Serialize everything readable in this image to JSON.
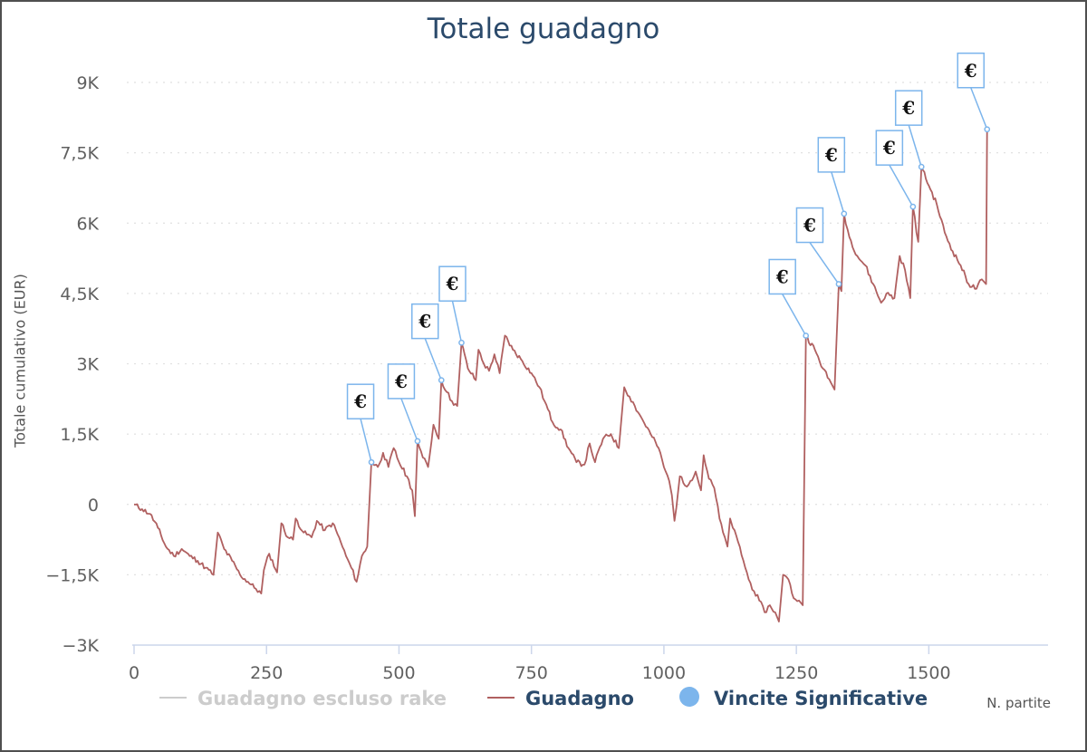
{
  "chart_data": {
    "type": "line",
    "title": "Totale guadagno",
    "xlabel": "N. partite",
    "ylabel": "Totale cumulativo (EUR)",
    "xlim": [
      0,
      1725
    ],
    "ylim": [
      -3000,
      9000
    ],
    "x_ticks": [
      0,
      250,
      500,
      750,
      1000,
      1250,
      1500
    ],
    "x_tick_labels": [
      "0",
      "250",
      "500",
      "750",
      "1000",
      "1250",
      "1500"
    ],
    "y_ticks": [
      -3000,
      -1500,
      0,
      1500,
      3000,
      4500,
      6000,
      7500,
      9000
    ],
    "y_tick_labels": [
      "−3K",
      "−1,5K",
      "0",
      "1,5K",
      "3K",
      "4,5K",
      "6K",
      "7,5K",
      "9K"
    ],
    "grid": true,
    "legend_position": "bottom",
    "legend": [
      {
        "name": "Guadagno escluso rake",
        "color": "#cccccc",
        "symbol": "line",
        "hidden": true
      },
      {
        "name": "Guadagno",
        "color": "#b06060",
        "symbol": "line"
      },
      {
        "name": "Vincite Significative",
        "color": "#7cb5ec",
        "symbol": "circle"
      }
    ],
    "series": [
      {
        "name": "Guadagno",
        "color": "#b06060",
        "points": [
          [
            0,
            0
          ],
          [
            15,
            -100
          ],
          [
            30,
            -200
          ],
          [
            45,
            -500
          ],
          [
            60,
            -900
          ],
          [
            75,
            -1100
          ],
          [
            90,
            -950
          ],
          [
            105,
            -1100
          ],
          [
            120,
            -1200
          ],
          [
            135,
            -1350
          ],
          [
            150,
            -1500
          ],
          [
            158,
            -600
          ],
          [
            170,
            -950
          ],
          [
            185,
            -1200
          ],
          [
            200,
            -1500
          ],
          [
            215,
            -1650
          ],
          [
            230,
            -1800
          ],
          [
            240,
            -1900
          ],
          [
            245,
            -1400
          ],
          [
            255,
            -1050
          ],
          [
            270,
            -1450
          ],
          [
            278,
            -400
          ],
          [
            290,
            -700
          ],
          [
            300,
            -750
          ],
          [
            305,
            -300
          ],
          [
            320,
            -600
          ],
          [
            335,
            -700
          ],
          [
            345,
            -350
          ],
          [
            360,
            -550
          ],
          [
            375,
            -400
          ],
          [
            390,
            -800
          ],
          [
            400,
            -1100
          ],
          [
            410,
            -1350
          ],
          [
            420,
            -1650
          ],
          [
            430,
            -1100
          ],
          [
            440,
            -900
          ],
          [
            448,
            900
          ],
          [
            460,
            800
          ],
          [
            470,
            1100
          ],
          [
            480,
            800
          ],
          [
            490,
            1200
          ],
          [
            500,
            900
          ],
          [
            515,
            600
          ],
          [
            525,
            300
          ],
          [
            530,
            -250
          ],
          [
            535,
            1350
          ],
          [
            545,
            1000
          ],
          [
            555,
            800
          ],
          [
            565,
            1700
          ],
          [
            575,
            1400
          ],
          [
            580,
            2650
          ],
          [
            590,
            2400
          ],
          [
            600,
            2200
          ],
          [
            610,
            2100
          ],
          [
            618,
            3450
          ],
          [
            630,
            2900
          ],
          [
            645,
            2650
          ],
          [
            650,
            3300
          ],
          [
            660,
            3000
          ],
          [
            670,
            2850
          ],
          [
            680,
            3200
          ],
          [
            690,
            2800
          ],
          [
            700,
            3600
          ],
          [
            715,
            3300
          ],
          [
            730,
            3100
          ],
          [
            750,
            2800
          ],
          [
            765,
            2500
          ],
          [
            775,
            2200
          ],
          [
            790,
            1750
          ],
          [
            805,
            1600
          ],
          [
            820,
            1200
          ],
          [
            835,
            900
          ],
          [
            850,
            850
          ],
          [
            860,
            1300
          ],
          [
            870,
            900
          ],
          [
            885,
            1400
          ],
          [
            900,
            1500
          ],
          [
            915,
            1200
          ],
          [
            925,
            2500
          ],
          [
            935,
            2300
          ],
          [
            945,
            2100
          ],
          [
            960,
            1800
          ],
          [
            975,
            1500
          ],
          [
            990,
            1200
          ],
          [
            1000,
            800
          ],
          [
            1010,
            500
          ],
          [
            1015,
            200
          ],
          [
            1020,
            -350
          ],
          [
            1030,
            600
          ],
          [
            1040,
            400
          ],
          [
            1050,
            500
          ],
          [
            1060,
            700
          ],
          [
            1070,
            300
          ],
          [
            1075,
            1050
          ],
          [
            1085,
            550
          ],
          [
            1095,
            350
          ],
          [
            1105,
            -300
          ],
          [
            1115,
            -700
          ],
          [
            1120,
            -900
          ],
          [
            1125,
            -300
          ],
          [
            1130,
            -500
          ],
          [
            1140,
            -800
          ],
          [
            1150,
            -1200
          ],
          [
            1160,
            -1600
          ],
          [
            1170,
            -1850
          ],
          [
            1180,
            -2050
          ],
          [
            1190,
            -2300
          ],
          [
            1200,
            -2150
          ],
          [
            1210,
            -2300
          ],
          [
            1217,
            -2500
          ],
          [
            1225,
            -1500
          ],
          [
            1235,
            -1600
          ],
          [
            1245,
            -2000
          ],
          [
            1255,
            -2050
          ],
          [
            1262,
            -2150
          ],
          [
            1268,
            3600
          ],
          [
            1285,
            3300
          ],
          [
            1300,
            2900
          ],
          [
            1315,
            2600
          ],
          [
            1322,
            2450
          ],
          [
            1330,
            4700
          ],
          [
            1335,
            4550
          ],
          [
            1340,
            6200
          ],
          [
            1350,
            5700
          ],
          [
            1365,
            5300
          ],
          [
            1380,
            5100
          ],
          [
            1395,
            4700
          ],
          [
            1410,
            4300
          ],
          [
            1420,
            4500
          ],
          [
            1435,
            4400
          ],
          [
            1445,
            5300
          ],
          [
            1455,
            5000
          ],
          [
            1465,
            4400
          ],
          [
            1470,
            6350
          ],
          [
            1480,
            5600
          ],
          [
            1486,
            7200
          ],
          [
            1500,
            6800
          ],
          [
            1515,
            6400
          ],
          [
            1530,
            5800
          ],
          [
            1545,
            5400
          ],
          [
            1560,
            5100
          ],
          [
            1575,
            4700
          ],
          [
            1590,
            4600
          ],
          [
            1600,
            4800
          ],
          [
            1608,
            4700
          ],
          [
            1610,
            8000
          ]
        ]
      },
      {
        "name": "Vincite Significative",
        "color": "#7cb5ec",
        "label": "€",
        "points": [
          [
            448,
            900
          ],
          [
            535,
            1350
          ],
          [
            580,
            2650
          ],
          [
            618,
            3450
          ],
          [
            1268,
            3600
          ],
          [
            1330,
            4700
          ],
          [
            1340,
            6200
          ],
          [
            1470,
            6350
          ],
          [
            1486,
            7200
          ],
          [
            1610,
            8000
          ]
        ]
      }
    ]
  }
}
